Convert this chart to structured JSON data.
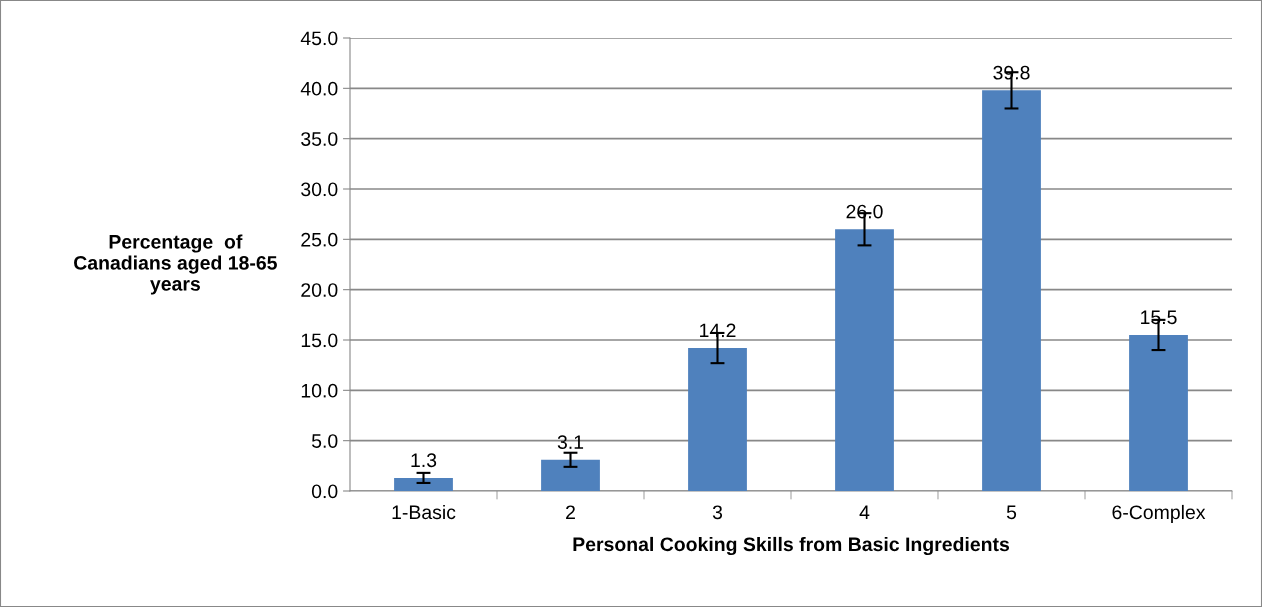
{
  "chart_data": {
    "type": "bar",
    "xlabel": "Personal Cooking Skills from Basic Ingredients",
    "ylabel": "Percentage  of\nCanadians aged 18-65\nyears",
    "categories": [
      "1-Basic",
      "2",
      "3",
      "4",
      "5",
      "6-Complex"
    ],
    "values": [
      1.3,
      3.1,
      14.2,
      26.0,
      39.8,
      15.5
    ],
    "errors": [
      0.5,
      0.7,
      1.5,
      1.6,
      1.8,
      1.5
    ],
    "color": "#4f81bd",
    "value_labels": [
      "1.3",
      "3.1",
      "14.2",
      "26.0",
      "39.8",
      "15.5"
    ],
    "ylim": [
      0,
      45
    ],
    "yticks": [
      {
        "value": 0,
        "label": "0.0"
      },
      {
        "value": 5,
        "label": "5.0"
      },
      {
        "value": 10,
        "label": "10.0"
      },
      {
        "value": 15,
        "label": "15.0"
      },
      {
        "value": 20,
        "label": "20.0"
      },
      {
        "value": 25,
        "label": "25.0"
      },
      {
        "value": 30,
        "label": "30.0"
      },
      {
        "value": 35,
        "label": "35.0"
      },
      {
        "value": 40,
        "label": "40.0"
      },
      {
        "value": 45,
        "label": "45.0"
      }
    ],
    "grid": "y"
  }
}
